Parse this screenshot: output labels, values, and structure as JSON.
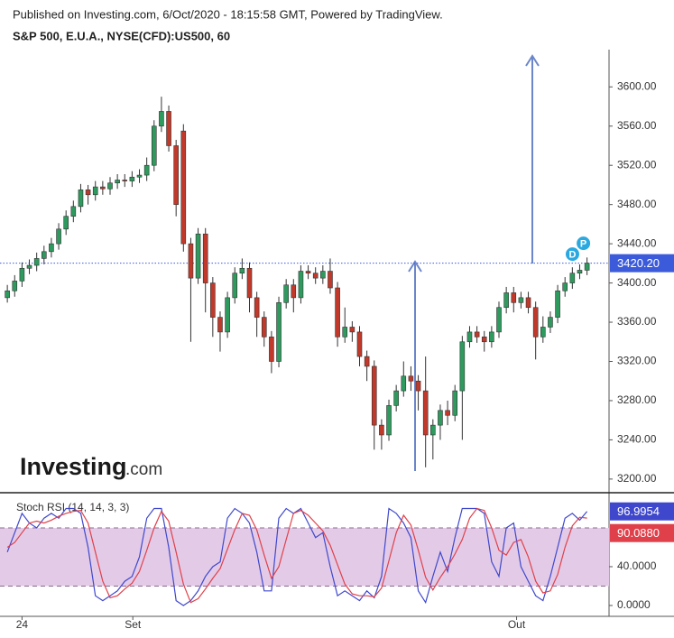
{
  "header": {
    "published": "Published on Investing.com, 6/Oct/2020 - 18:15:58 GMT, Powered by TradingView.",
    "symbol": "S&P 500, E.U.A., NYSE(CFD):US500, 60"
  },
  "logo": {
    "name": "Investing",
    "suffix": ".com"
  },
  "chart_data": [
    {
      "type": "candlestick",
      "xlim": [
        -1,
        82
      ],
      "ylim": [
        3187,
        3638
      ],
      "open": [
        3385,
        3392,
        3402,
        3415,
        3418,
        3425,
        3432,
        3440,
        3455,
        3468,
        3478,
        3495,
        3490,
        3498,
        3496,
        3502,
        3505,
        3504,
        3508,
        3510,
        3520,
        3560,
        3575,
        3540,
        3555,
        3440,
        3405,
        3450,
        3400,
        3365,
        3350,
        3385,
        3410,
        3415,
        3385,
        3365,
        3345,
        3320,
        3380,
        3398,
        3385,
        3412,
        3410,
        3405,
        3412,
        3395,
        3345,
        3355,
        3350,
        3325,
        3315,
        3255,
        3245,
        3275,
        3290,
        3305,
        3300,
        3290,
        3245,
        3255,
        3270,
        3265,
        3290,
        3340,
        3350,
        3345,
        3340,
        3350,
        3375,
        3390,
        3380,
        3385,
        3375,
        3345,
        3355,
        3365,
        3392,
        3400,
        3410,
        3413
      ],
      "high": [
        3398,
        3408,
        3421,
        3424,
        3431,
        3438,
        3446,
        3461,
        3474,
        3484,
        3501,
        3500,
        3504,
        3504,
        3508,
        3511,
        3511,
        3514,
        3516,
        3528,
        3566,
        3590,
        3581,
        3546,
        3562,
        3446,
        3456,
        3456,
        3406,
        3371,
        3391,
        3416,
        3425,
        3421,
        3391,
        3371,
        3351,
        3386,
        3404,
        3404,
        3418,
        3418,
        3416,
        3418,
        3425,
        3401,
        3375,
        3361,
        3356,
        3331,
        3321,
        3261,
        3281,
        3296,
        3320,
        3315,
        3306,
        3325,
        3261,
        3276,
        3280,
        3296,
        3346,
        3356,
        3356,
        3351,
        3356,
        3381,
        3396,
        3396,
        3391,
        3391,
        3381,
        3366,
        3371,
        3398,
        3406,
        3416,
        3419,
        3426
      ],
      "low": [
        3380,
        3386,
        3396,
        3409,
        3412,
        3419,
        3426,
        3434,
        3449,
        3462,
        3472,
        3480,
        3484,
        3490,
        3490,
        3496,
        3498,
        3498,
        3502,
        3504,
        3514,
        3554,
        3534,
        3468,
        3432,
        3340,
        3399,
        3370,
        3345,
        3330,
        3344,
        3379,
        3404,
        3370,
        3345,
        3335,
        3308,
        3314,
        3374,
        3370,
        3379,
        3404,
        3399,
        3399,
        3389,
        3335,
        3339,
        3340,
        3315,
        3300,
        3230,
        3230,
        3239,
        3269,
        3284,
        3290,
        3270,
        3212,
        3220,
        3240,
        3255,
        3259,
        3240,
        3334,
        3339,
        3330,
        3334,
        3344,
        3369,
        3370,
        3374,
        3369,
        3322,
        3339,
        3349,
        3359,
        3386,
        3394,
        3404,
        3408
      ],
      "close": [
        3392,
        3402,
        3415,
        3418,
        3425,
        3432,
        3440,
        3455,
        3468,
        3478,
        3495,
        3490,
        3498,
        3496,
        3502,
        3505,
        3504,
        3508,
        3510,
        3520,
        3560,
        3575,
        3540,
        3480,
        3440,
        3405,
        3450,
        3400,
        3365,
        3350,
        3385,
        3410,
        3415,
        3385,
        3365,
        3345,
        3320,
        3380,
        3398,
        3385,
        3412,
        3410,
        3405,
        3412,
        3395,
        3345,
        3355,
        3350,
        3325,
        3315,
        3255,
        3245,
        3275,
        3290,
        3305,
        3300,
        3290,
        3245,
        3255,
        3270,
        3265,
        3290,
        3340,
        3350,
        3345,
        3340,
        3350,
        3375,
        3390,
        3380,
        3385,
        3375,
        3345,
        3355,
        3365,
        3392,
        3400,
        3410,
        3413,
        3420.2
      ],
      "up_color": "#2e9a5e",
      "down_color": "#c1392b",
      "line_color": "#3b5bdb",
      "last_label": "3420.20",
      "markers": [
        "D",
        "P"
      ],
      "yticks": [
        {
          "value": 3200,
          "label": "3200.00"
        },
        {
          "value": 3240,
          "label": "3240.00"
        },
        {
          "value": 3280,
          "label": "3280.00"
        },
        {
          "value": 3320,
          "label": "3320.00"
        },
        {
          "value": 3360,
          "label": "3360.00"
        },
        {
          "value": 3400,
          "label": "3400.00"
        },
        {
          "value": 3440,
          "label": "3440.00"
        },
        {
          "value": 3480,
          "label": "3480.00"
        },
        {
          "value": 3520,
          "label": "3520.00"
        },
        {
          "value": 3560,
          "label": "3560.00"
        },
        {
          "value": 3600,
          "label": "3600.00"
        }
      ]
    },
    {
      "type": "line",
      "title": "Stoch RSI (14, 14, 3, 3)",
      "xlim": [
        -1,
        82
      ],
      "ylim": [
        -11.2,
        114.4
      ],
      "band": [
        20,
        80
      ],
      "band_color": "#e3cbe8",
      "series": [
        {
          "color": "#3f48cc",
          "last_label": "96.9954",
          "values": [
            55,
            75,
            95,
            85,
            80,
            90,
            95,
            90,
            100,
            100,
            95,
            60,
            10,
            5,
            10,
            15,
            25,
            30,
            50,
            90,
            100,
            100,
            60,
            5,
            0,
            5,
            15,
            30,
            40,
            45,
            90,
            100,
            95,
            85,
            55,
            15,
            15,
            90,
            100,
            95,
            100,
            85,
            70,
            75,
            40,
            10,
            15,
            10,
            5,
            15,
            8,
            30,
            100,
            95,
            85,
            70,
            15,
            3,
            30,
            55,
            35,
            70,
            100,
            100,
            100,
            95,
            45,
            30,
            80,
            85,
            40,
            25,
            10,
            5,
            30,
            60,
            90,
            95,
            88,
            96.9954
          ]
        },
        {
          "color": "#e0404a",
          "last_label": "90.0880",
          "values": [
            60,
            65,
            75,
            85,
            87,
            85,
            88,
            92,
            95,
            97,
            98,
            85,
            55,
            25,
            8,
            10,
            17,
            23,
            35,
            57,
            80,
            97,
            87,
            55,
            22,
            3,
            7,
            17,
            28,
            38,
            58,
            78,
            95,
            93,
            78,
            52,
            28,
            40,
            68,
            95,
            98,
            93,
            85,
            77,
            62,
            42,
            22,
            12,
            10,
            10,
            9,
            18,
            46,
            75,
            93,
            83,
            57,
            29,
            16,
            29,
            40,
            53,
            68,
            90,
            100,
            98,
            80,
            57,
            52,
            65,
            68,
            50,
            25,
            13,
            15,
            32,
            60,
            82,
            91,
            90.088
          ]
        }
      ],
      "yticks": [
        {
          "value": 0,
          "label": "0.0000"
        },
        {
          "value": 40,
          "label": "40.0000"
        }
      ],
      "xticks": [
        {
          "value": 2,
          "label": "24"
        },
        {
          "value": 17.1,
          "label": "Set"
        },
        {
          "value": 69.4,
          "label": "Out"
        }
      ]
    }
  ]
}
